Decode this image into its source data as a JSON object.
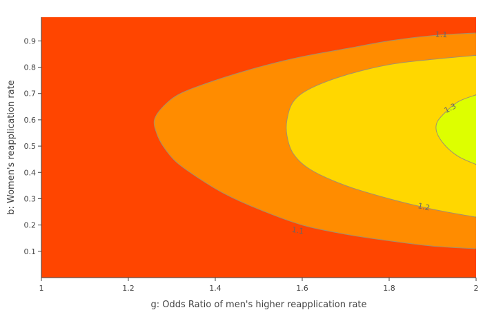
{
  "chart_data": {
    "type": "contour",
    "title": "",
    "xlabel": "g: Odds Ratio of men's higher reapplication rate",
    "ylabel": "b: Women's reapplication rate",
    "xlim": [
      1,
      2
    ],
    "ylim": [
      0,
      0.99
    ],
    "x_ticks": [
      1,
      1.2,
      1.4,
      1.6,
      1.8,
      2
    ],
    "x_tick_labels": [
      "1",
      "1.2",
      "1.4",
      "1.6",
      "1.8",
      "2"
    ],
    "y_ticks": [
      0.1,
      0.2,
      0.3,
      0.4,
      0.5,
      0.6,
      0.7,
      0.8,
      0.9
    ],
    "y_tick_labels": [
      "0.1",
      "0.2",
      "0.3",
      "0.4",
      "0.5",
      "0.6",
      "0.7",
      "0.8",
      "0.9"
    ],
    "grid": false,
    "colors": {
      "below_1.1": "#FF4500",
      "1.1_to_1.2": "#FF8C00",
      "1.2_to_1.3": "#FFD700",
      "above_1.3": "#DDFF00",
      "contour_line": "#A09070"
    },
    "contour_levels": [
      {
        "level": 1.1,
        "label": "1.1",
        "boundary": [
          [
            2,
            0.93
          ],
          [
            1.9,
            0.92
          ],
          [
            1.8,
            0.9
          ],
          [
            1.7,
            0.87
          ],
          [
            1.6,
            0.84
          ],
          [
            1.5,
            0.8
          ],
          [
            1.4,
            0.75
          ],
          [
            1.32,
            0.7
          ],
          [
            1.28,
            0.65
          ],
          [
            1.26,
            0.6
          ],
          [
            1.265,
            0.55
          ],
          [
            1.28,
            0.5
          ],
          [
            1.31,
            0.44
          ],
          [
            1.36,
            0.38
          ],
          [
            1.42,
            0.32
          ],
          [
            1.5,
            0.26
          ],
          [
            1.6,
            0.2
          ],
          [
            1.7,
            0.165
          ],
          [
            1.8,
            0.14
          ],
          [
            1.9,
            0.12
          ],
          [
            2,
            0.11
          ]
        ],
        "label_positions": [
          [
            1.92,
            0.925
          ],
          [
            1.59,
            0.18
          ]
        ]
      },
      {
        "level": 1.2,
        "label": "1.2",
        "boundary": [
          [
            2,
            0.845
          ],
          [
            1.9,
            0.83
          ],
          [
            1.8,
            0.81
          ],
          [
            1.7,
            0.77
          ],
          [
            1.62,
            0.72
          ],
          [
            1.58,
            0.67
          ],
          [
            1.565,
            0.6
          ],
          [
            1.565,
            0.54
          ],
          [
            1.58,
            0.47
          ],
          [
            1.62,
            0.41
          ],
          [
            1.7,
            0.35
          ],
          [
            1.8,
            0.3
          ],
          [
            1.9,
            0.26
          ],
          [
            2,
            0.23
          ]
        ],
        "label_positions": [
          [
            1.88,
            0.27
          ]
        ]
      },
      {
        "level": 1.3,
        "label": "1.3",
        "boundary": [
          [
            2,
            0.695
          ],
          [
            1.96,
            0.67
          ],
          [
            1.93,
            0.63
          ],
          [
            1.91,
            0.59
          ],
          [
            1.91,
            0.55
          ],
          [
            1.93,
            0.5
          ],
          [
            1.96,
            0.46
          ],
          [
            2,
            0.43
          ]
        ],
        "label_positions": [
          [
            1.94,
            0.645
          ]
        ]
      }
    ]
  }
}
